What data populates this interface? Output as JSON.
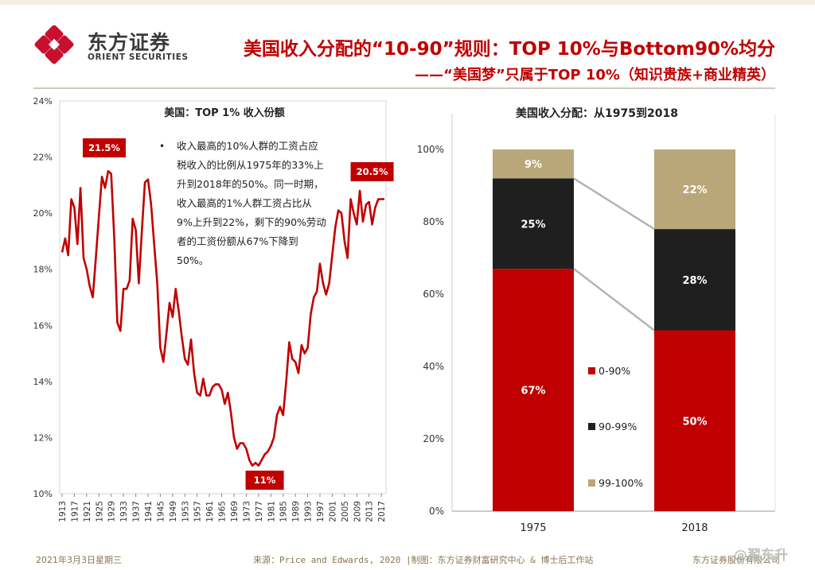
{
  "header": {
    "logo_cn": "东方证券",
    "logo_en": "ORIENT SECURITIES",
    "title": "美国收入分配的“10-90”规则：TOP 10%与Bottom90%均分",
    "subtitle": "——“美国梦”只属于TOP 10%（知识贵族+商业精英）"
  },
  "footer": {
    "date": "2021年3月3日星期三",
    "source": "来源：Price and Edwards, 2020 |制图：东方证券财富研究中心 & 博士后工作站",
    "company": "东方证券股份有限公司",
    "watermark": "@翟东升"
  },
  "colors": {
    "red": "#c00000",
    "black": "#1f1f1f",
    "tan": "#b9a77a",
    "connector": "#b4b4b4"
  },
  "note": {
    "bullet": "•",
    "text": "收入最高的10%人群的工资占应税收入的比例从1975年的33%上升到2018年的50%。同一时期，收入最高的1%人群工资占比从9%上升到22%，剩下的90%劳动者的工资份额从67%下降到50%。"
  },
  "chart_data": [
    {
      "type": "line",
      "title": "美国：TOP 1% 收入份额",
      "ylim": [
        10,
        24
      ],
      "yticks": [
        "10%",
        "12%",
        "14%",
        "16%",
        "18%",
        "20%",
        "22%",
        "24%"
      ],
      "xticks": [
        "1913",
        "1917",
        "1921",
        "1925",
        "1929",
        "1933",
        "1937",
        "1941",
        "1945",
        "1949",
        "1953",
        "1957",
        "1961",
        "1965",
        "1969",
        "1973",
        "1977",
        "1981",
        "1985",
        "1989",
        "1993",
        "1997",
        "2001",
        "2005",
        "2009",
        "2013",
        "2017"
      ],
      "series": [
        {
          "x": [
            1913,
            1914,
            1915,
            1916,
            1917,
            1918,
            1919,
            1920,
            1921,
            1922,
            1923,
            1924,
            1925,
            1926,
            1927,
            1928,
            1929,
            1930,
            1931,
            1932,
            1933,
            1934,
            1935,
            1936,
            1937,
            1938,
            1939,
            1940,
            1941,
            1942,
            1943,
            1944,
            1945,
            1946,
            1947,
            1948,
            1949,
            1950,
            1951,
            1952,
            1953,
            1954,
            1955,
            1956,
            1957,
            1958,
            1959,
            1960,
            1961,
            1962,
            1963,
            1964,
            1965,
            1966,
            1967,
            1968,
            1969,
            1970,
            1971,
            1972,
            1973,
            1974,
            1975,
            1976,
            1977,
            1978,
            1979,
            1980,
            1981,
            1982,
            1983,
            1984,
            1985,
            1986,
            1987,
            1988,
            1989,
            1990,
            1991,
            1992,
            1993,
            1994,
            1995,
            1996,
            1997,
            1998,
            1999,
            2000,
            2001,
            2002,
            2003,
            2004,
            2005,
            2006,
            2007,
            2008,
            2009,
            2010,
            2011,
            2012,
            2013,
            2014,
            2015,
            2016,
            2017,
            2018
          ],
          "y": [
            18.6,
            19.1,
            18.5,
            20.5,
            20.2,
            18.9,
            20.9,
            18.4,
            18.0,
            17.4,
            17.0,
            18.4,
            19.9,
            21.3,
            20.9,
            21.5,
            21.4,
            19.1,
            16.1,
            15.8,
            17.3,
            17.3,
            17.6,
            19.8,
            19.4,
            17.5,
            19.4,
            21.1,
            21.2,
            20.3,
            18.9,
            17.5,
            15.2,
            14.7,
            15.7,
            16.8,
            16.3,
            17.3,
            16.5,
            15.6,
            14.8,
            14.6,
            15.5,
            14.3,
            13.6,
            13.5,
            14.1,
            13.5,
            13.5,
            13.8,
            13.9,
            13.9,
            13.7,
            13.2,
            13.6,
            12.9,
            12.0,
            11.6,
            11.8,
            11.8,
            11.6,
            11.2,
            11.0,
            11.1,
            11.0,
            11.2,
            11.4,
            11.5,
            11.7,
            12.0,
            12.8,
            13.1,
            12.8,
            14.0,
            15.4,
            14.8,
            14.7,
            14.3,
            15.3,
            15.0,
            15.2,
            16.4,
            17.0,
            17.2,
            18.2,
            17.5,
            17.1,
            17.5,
            18.5,
            19.5,
            20.1,
            20.0,
            19.0,
            18.4,
            20.5,
            20.0,
            19.6,
            20.8,
            19.7,
            20.3,
            20.4,
            19.6,
            20.2,
            20.5,
            20.5,
            20.5
          ]
        }
      ],
      "annotations": [
        {
          "label": "21.5%",
          "x": 1927
        },
        {
          "label": "20.5%",
          "x": 2014
        },
        {
          "label": "11%",
          "x": 1979
        }
      ]
    },
    {
      "type": "bar",
      "stacked": true,
      "title": "美国收入分配：从1975到2018",
      "categories": [
        "1975",
        "2018"
      ],
      "ylim": [
        0,
        100
      ],
      "yticks": [
        "0%",
        "20%",
        "40%",
        "60%",
        "80%",
        "100%"
      ],
      "series": [
        {
          "name": "0-90%",
          "values": [
            67,
            50
          ],
          "labels": [
            "67%",
            "50%"
          ]
        },
        {
          "name": "90-99%",
          "values": [
            25,
            28
          ],
          "labels": [
            "25%",
            "28%"
          ]
        },
        {
          "name": "99-100%",
          "values": [
            9,
            22
          ],
          "labels": [
            "9%",
            "22%"
          ]
        }
      ],
      "legend": "bottom-center"
    }
  ]
}
